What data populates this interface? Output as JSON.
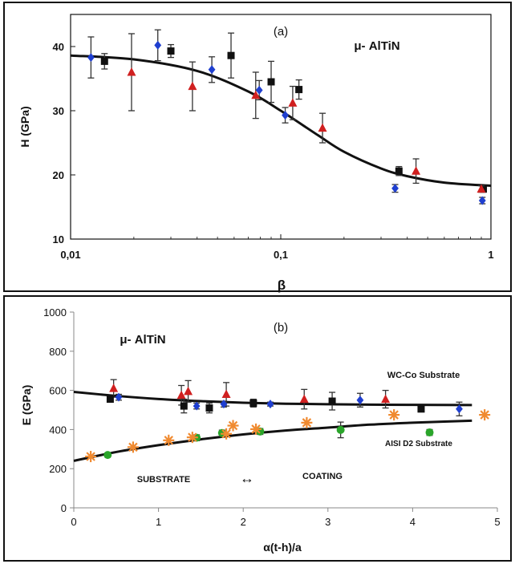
{
  "chart_data": [
    {
      "type": "scatter",
      "panel_label": "(a)",
      "annotation": "μ- AlTiN",
      "xlabel": "β",
      "ylabel": "H (GPa)",
      "xscale": "log",
      "xlim": [
        0.01,
        1
      ],
      "ylim": [
        10,
        45
      ],
      "xticks": [
        0.01,
        0.1,
        1
      ],
      "xtick_labels": [
        "0,01",
        "0,1",
        "1"
      ],
      "yticks": [
        10,
        20,
        30,
        40
      ],
      "ytick_labels": [
        "10",
        "20",
        "30",
        "40"
      ],
      "grid": false,
      "legend": "none",
      "series": [
        {
          "marker": "diamond",
          "color": "#1f3fd0",
          "points": [
            {
              "x": 0.0125,
              "y": 38.3,
              "err": 3.2
            },
            {
              "x": 0.026,
              "y": 40.2,
              "err": 2.4
            },
            {
              "x": 0.047,
              "y": 36.4,
              "err": 2.0
            },
            {
              "x": 0.079,
              "y": 33.2,
              "err": 1.5
            },
            {
              "x": 0.105,
              "y": 29.3,
              "err": 1.2
            },
            {
              "x": 0.35,
              "y": 17.9,
              "err": 0.6
            },
            {
              "x": 0.91,
              "y": 16.0,
              "err": 0.5
            }
          ]
        },
        {
          "marker": "square",
          "color": "#111111",
          "points": [
            {
              "x": 0.0145,
              "y": 37.7,
              "err": 1.2
            },
            {
              "x": 0.03,
              "y": 39.3,
              "err": 1.0
            },
            {
              "x": 0.058,
              "y": 38.6,
              "err": 3.5
            },
            {
              "x": 0.09,
              "y": 34.5,
              "err": 3.2
            },
            {
              "x": 0.122,
              "y": 33.3,
              "err": 1.5
            },
            {
              "x": 0.365,
              "y": 20.6,
              "err": 0.7
            },
            {
              "x": 0.92,
              "y": 17.8,
              "err": 0.5
            }
          ]
        },
        {
          "marker": "triangle",
          "color": "#d02020",
          "points": [
            {
              "x": 0.0195,
              "y": 36.0,
              "err": 6.0
            },
            {
              "x": 0.038,
              "y": 33.8,
              "err": 3.8
            },
            {
              "x": 0.076,
              "y": 32.4,
              "err": 3.6
            },
            {
              "x": 0.114,
              "y": 31.2,
              "err": 2.6
            },
            {
              "x": 0.158,
              "y": 27.3,
              "err": 2.3
            },
            {
              "x": 0.44,
              "y": 20.6,
              "err": 1.9
            },
            {
              "x": 0.9,
              "y": 17.8,
              "err": 0.5
            }
          ]
        }
      ],
      "fit_curve": {
        "color": "#111111",
        "x": [
          0.01,
          0.02,
          0.04,
          0.07,
          0.1,
          0.15,
          0.2,
          0.3,
          0.4,
          0.6,
          1.0
        ],
        "y": [
          38.6,
          38.0,
          36.2,
          33.0,
          30.0,
          26.2,
          23.6,
          21.0,
          19.8,
          18.8,
          18.3
        ]
      }
    },
    {
      "type": "scatter",
      "panel_label": "(b)",
      "annotation": "μ- AlTiN",
      "xlabel": "α(t-h)/a",
      "ylabel": "E (GPa)",
      "xlim": [
        0,
        5
      ],
      "ylim": [
        0,
        1000
      ],
      "xticks": [
        0,
        1,
        2,
        3,
        4,
        5
      ],
      "xtick_labels": [
        "0",
        "1",
        "2",
        "3",
        "4",
        "5"
      ],
      "yticks": [
        0,
        200,
        400,
        600,
        800,
        1000
      ],
      "ytick_labels": [
        "0",
        "200",
        "400",
        "600",
        "800",
        "1000"
      ],
      "grid": false,
      "legend": "none",
      "labels": {
        "upper": "WC-Co Substrate",
        "lower": "AISI D2 Substrate",
        "left_region": "SUBSTRATE",
        "right_region": "COATING",
        "arrow": "↔"
      },
      "series": [
        {
          "marker": "triangle",
          "color": "#d02020",
          "points": [
            {
              "x": 0.47,
              "y": 610,
              "err": 45
            },
            {
              "x": 1.27,
              "y": 575,
              "err": 50
            },
            {
              "x": 1.35,
              "y": 595,
              "err": 55
            },
            {
              "x": 1.8,
              "y": 580,
              "err": 60
            },
            {
              "x": 2.72,
              "y": 555,
              "err": 50
            },
            {
              "x": 3.68,
              "y": 555,
              "err": 45
            }
          ]
        },
        {
          "marker": "square",
          "color": "#111111",
          "points": [
            {
              "x": 0.43,
              "y": 555,
              "err": 15
            },
            {
              "x": 1.3,
              "y": 520,
              "err": 35
            },
            {
              "x": 1.6,
              "y": 510,
              "err": 25
            },
            {
              "x": 2.12,
              "y": 535,
              "err": 20
            },
            {
              "x": 3.05,
              "y": 545,
              "err": 45
            },
            {
              "x": 4.1,
              "y": 505,
              "err": 15
            }
          ]
        },
        {
          "marker": "diamond",
          "color": "#1f3fd0",
          "points": [
            {
              "x": 0.53,
              "y": 565,
              "err": 15
            },
            {
              "x": 1.45,
              "y": 520,
              "err": 15
            },
            {
              "x": 1.77,
              "y": 530,
              "err": 15
            },
            {
              "x": 2.32,
              "y": 530,
              "err": 10
            },
            {
              "x": 3.38,
              "y": 550,
              "err": 35
            },
            {
              "x": 4.55,
              "y": 505,
              "err": 35
            }
          ]
        },
        {
          "marker": "circle",
          "color": "#2aa52a",
          "points": [
            {
              "x": 0.4,
              "y": 270,
              "err": 10
            },
            {
              "x": 1.45,
              "y": 358,
              "err": 15
            },
            {
              "x": 1.75,
              "y": 382,
              "err": 15
            },
            {
              "x": 2.2,
              "y": 390,
              "err": 15
            },
            {
              "x": 3.15,
              "y": 398,
              "err": 40
            },
            {
              "x": 4.2,
              "y": 385,
              "err": 15
            }
          ]
        },
        {
          "marker": "asterisk",
          "color": "#f08a30",
          "points": [
            {
              "x": 0.2,
              "y": 262
            },
            {
              "x": 0.7,
              "y": 310
            },
            {
              "x": 1.12,
              "y": 345
            },
            {
              "x": 1.4,
              "y": 360
            },
            {
              "x": 1.8,
              "y": 378
            },
            {
              "x": 1.88,
              "y": 420
            },
            {
              "x": 2.15,
              "y": 402
            },
            {
              "x": 2.75,
              "y": 435
            },
            {
              "x": 3.78,
              "y": 475
            },
            {
              "x": 4.85,
              "y": 475
            }
          ]
        }
      ],
      "fit_curves": [
        {
          "color": "#111111",
          "x": [
            0,
            0.5,
            1,
            1.5,
            2,
            2.5,
            3,
            3.5,
            4,
            4.7
          ],
          "y": [
            592,
            572,
            556,
            545,
            537,
            532,
            529,
            527,
            526,
            525
          ]
        },
        {
          "color": "#111111",
          "x": [
            0,
            0.5,
            1,
            1.5,
            2,
            2.5,
            3,
            3.5,
            4,
            4.7
          ],
          "y": [
            240,
            285,
            320,
            350,
            375,
            395,
            410,
            425,
            435,
            445
          ]
        }
      ]
    }
  ]
}
